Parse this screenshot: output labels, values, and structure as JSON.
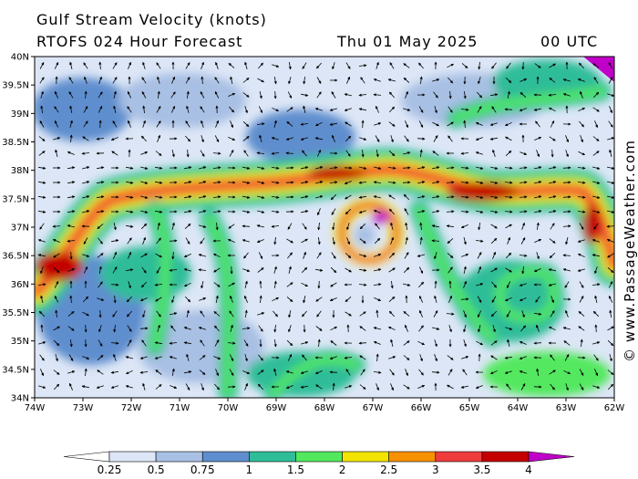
{
  "header": {
    "title": "Gulf Stream Velocity (knots)",
    "model_line": "RTOFS 024 Hour Forecast",
    "date": "Thu 01 May 2025",
    "time": "00 UTC"
  },
  "credit": "© www.PassageWeather.com",
  "map": {
    "lat_labels": [
      "40N",
      "39.5N",
      "39N",
      "38.5N",
      "38N",
      "37.5N",
      "37N",
      "36.5N",
      "36N",
      "35.5N",
      "35N",
      "34.5N",
      "34N"
    ],
    "lon_labels": [
      "74W",
      "73W",
      "72W",
      "71W",
      "70W",
      "69W",
      "68W",
      "67W",
      "66W",
      "65W",
      "64W",
      "63W",
      "62W"
    ]
  },
  "legend": {
    "labels": [
      "0.25",
      "0.5",
      "0.75",
      "1",
      "1.5",
      "2",
      "2.5",
      "3",
      "3.5",
      "4"
    ],
    "colors": [
      "#ffffff",
      "#dce6f6",
      "#a8c0e4",
      "#5f8ece",
      "#2fbd98",
      "#52e85e",
      "#f2e400",
      "#f79100",
      "#ee3c3c",
      "#c40000",
      "#c000c8"
    ]
  },
  "colors": {
    "stream_core": "#c40000",
    "background": "#ffffff"
  }
}
